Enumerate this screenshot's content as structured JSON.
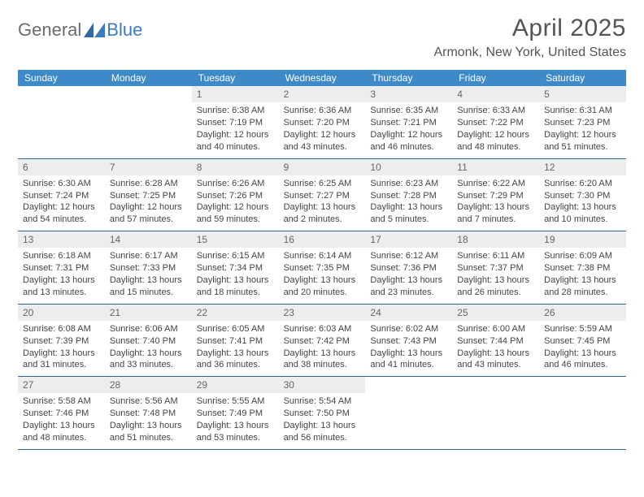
{
  "logo": {
    "text1": "General",
    "text2": "Blue",
    "color1": "#6b6b6b",
    "color2": "#3a7cbf"
  },
  "title": "April 2025",
  "location": "Armonk, New York, United States",
  "header_bg": "#3e89c8",
  "header_fg": "#ffffff",
  "daynum_bg": "#ededed",
  "border_color": "#2f6aa0",
  "days_of_week": [
    "Sunday",
    "Monday",
    "Tuesday",
    "Wednesday",
    "Thursday",
    "Friday",
    "Saturday"
  ],
  "weeks": [
    [
      null,
      null,
      {
        "n": "1",
        "sunrise": "6:38 AM",
        "sunset": "7:19 PM",
        "daylight": "12 hours and 40 minutes."
      },
      {
        "n": "2",
        "sunrise": "6:36 AM",
        "sunset": "7:20 PM",
        "daylight": "12 hours and 43 minutes."
      },
      {
        "n": "3",
        "sunrise": "6:35 AM",
        "sunset": "7:21 PM",
        "daylight": "12 hours and 46 minutes."
      },
      {
        "n": "4",
        "sunrise": "6:33 AM",
        "sunset": "7:22 PM",
        "daylight": "12 hours and 48 minutes."
      },
      {
        "n": "5",
        "sunrise": "6:31 AM",
        "sunset": "7:23 PM",
        "daylight": "12 hours and 51 minutes."
      }
    ],
    [
      {
        "n": "6",
        "sunrise": "6:30 AM",
        "sunset": "7:24 PM",
        "daylight": "12 hours and 54 minutes."
      },
      {
        "n": "7",
        "sunrise": "6:28 AM",
        "sunset": "7:25 PM",
        "daylight": "12 hours and 57 minutes."
      },
      {
        "n": "8",
        "sunrise": "6:26 AM",
        "sunset": "7:26 PM",
        "daylight": "12 hours and 59 minutes."
      },
      {
        "n": "9",
        "sunrise": "6:25 AM",
        "sunset": "7:27 PM",
        "daylight": "13 hours and 2 minutes."
      },
      {
        "n": "10",
        "sunrise": "6:23 AM",
        "sunset": "7:28 PM",
        "daylight": "13 hours and 5 minutes."
      },
      {
        "n": "11",
        "sunrise": "6:22 AM",
        "sunset": "7:29 PM",
        "daylight": "13 hours and 7 minutes."
      },
      {
        "n": "12",
        "sunrise": "6:20 AM",
        "sunset": "7:30 PM",
        "daylight": "13 hours and 10 minutes."
      }
    ],
    [
      {
        "n": "13",
        "sunrise": "6:18 AM",
        "sunset": "7:31 PM",
        "daylight": "13 hours and 13 minutes."
      },
      {
        "n": "14",
        "sunrise": "6:17 AM",
        "sunset": "7:33 PM",
        "daylight": "13 hours and 15 minutes."
      },
      {
        "n": "15",
        "sunrise": "6:15 AM",
        "sunset": "7:34 PM",
        "daylight": "13 hours and 18 minutes."
      },
      {
        "n": "16",
        "sunrise": "6:14 AM",
        "sunset": "7:35 PM",
        "daylight": "13 hours and 20 minutes."
      },
      {
        "n": "17",
        "sunrise": "6:12 AM",
        "sunset": "7:36 PM",
        "daylight": "13 hours and 23 minutes."
      },
      {
        "n": "18",
        "sunrise": "6:11 AM",
        "sunset": "7:37 PM",
        "daylight": "13 hours and 26 minutes."
      },
      {
        "n": "19",
        "sunrise": "6:09 AM",
        "sunset": "7:38 PM",
        "daylight": "13 hours and 28 minutes."
      }
    ],
    [
      {
        "n": "20",
        "sunrise": "6:08 AM",
        "sunset": "7:39 PM",
        "daylight": "13 hours and 31 minutes."
      },
      {
        "n": "21",
        "sunrise": "6:06 AM",
        "sunset": "7:40 PM",
        "daylight": "13 hours and 33 minutes."
      },
      {
        "n": "22",
        "sunrise": "6:05 AM",
        "sunset": "7:41 PM",
        "daylight": "13 hours and 36 minutes."
      },
      {
        "n": "23",
        "sunrise": "6:03 AM",
        "sunset": "7:42 PM",
        "daylight": "13 hours and 38 minutes."
      },
      {
        "n": "24",
        "sunrise": "6:02 AM",
        "sunset": "7:43 PM",
        "daylight": "13 hours and 41 minutes."
      },
      {
        "n": "25",
        "sunrise": "6:00 AM",
        "sunset": "7:44 PM",
        "daylight": "13 hours and 43 minutes."
      },
      {
        "n": "26",
        "sunrise": "5:59 AM",
        "sunset": "7:45 PM",
        "daylight": "13 hours and 46 minutes."
      }
    ],
    [
      {
        "n": "27",
        "sunrise": "5:58 AM",
        "sunset": "7:46 PM",
        "daylight": "13 hours and 48 minutes."
      },
      {
        "n": "28",
        "sunrise": "5:56 AM",
        "sunset": "7:48 PM",
        "daylight": "13 hours and 51 minutes."
      },
      {
        "n": "29",
        "sunrise": "5:55 AM",
        "sunset": "7:49 PM",
        "daylight": "13 hours and 53 minutes."
      },
      {
        "n": "30",
        "sunrise": "5:54 AM",
        "sunset": "7:50 PM",
        "daylight": "13 hours and 56 minutes."
      },
      null,
      null,
      null
    ]
  ],
  "labels": {
    "sunrise": "Sunrise:",
    "sunset": "Sunset:",
    "daylight": "Daylight:"
  }
}
